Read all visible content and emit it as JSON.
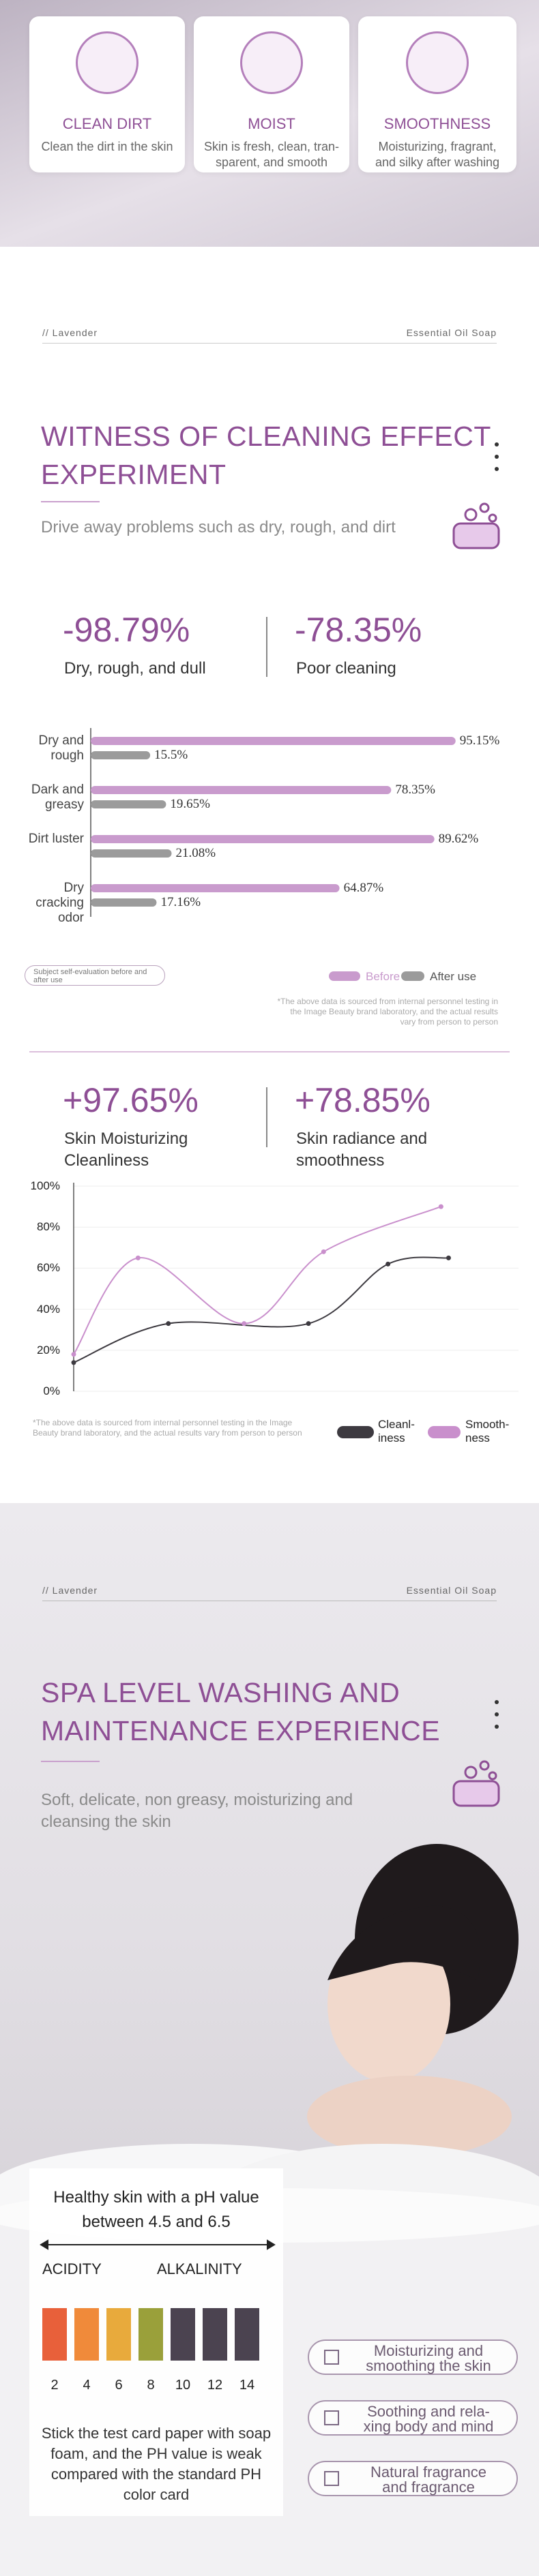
{
  "features": [
    {
      "title": "CLEAN DIRT",
      "text": "Clean the dirt in the skin"
    },
    {
      "title": "MOIST",
      "text": "Skin is fresh, clean, tran-sparent, and smooth"
    },
    {
      "title": "SMOOTHNESS",
      "text": "Moisturizing, fragrant, and silky after washing"
    }
  ],
  "section1": {
    "tag": "// Lavender",
    "product": "Essential Oil Soap",
    "title": "WITNESS OF CLEANING EFFECT EXPERIMENT",
    "subtitle": "Drive away problems such as dry, rough, and dirt",
    "stats": [
      {
        "value": "-98.79%",
        "label": "Dry, rough, and dull"
      },
      {
        "value": "-78.35%",
        "label": "Poor cleaning"
      }
    ]
  },
  "section2": {
    "stats": [
      {
        "value": "+97.65%",
        "label": "Skin Moisturizing Cleanliness"
      },
      {
        "value": "+78.85%",
        "label": "Skin radiance and smoothness"
      }
    ]
  },
  "chart_data": [
    {
      "type": "bar",
      "categories": [
        "Dry and rough",
        "Dark and greasy",
        "Dirt luster",
        "Dry cracking odor"
      ],
      "series": [
        {
          "name": "Before use",
          "color": "#c99bcd",
          "values": [
            95.15,
            78.35,
            89.62,
            64.87
          ],
          "value_labels": [
            "95.15%",
            "78.35%",
            "89.62%",
            "64.87%"
          ]
        },
        {
          "name": "After use",
          "color": "#9b9b9b",
          "values": [
            15.5,
            19.65,
            21.08,
            17.16
          ],
          "value_labels": [
            "15.5%",
            "19.65%",
            "21.08%",
            "17.16%"
          ]
        }
      ],
      "xlim": [
        0,
        100
      ],
      "caption": "Subject self-evaluation before and after use",
      "note": "*The above data is sourced from internal personnel testing in the Image Beauty brand laboratory, and the actual results vary from person to person"
    },
    {
      "type": "line",
      "series": [
        {
          "name": "Cleanl-iness",
          "color": "#3d3a40",
          "x": [
            0,
            25,
            62,
            83,
            99
          ],
          "values": [
            14,
            33,
            33,
            62,
            65
          ]
        },
        {
          "name": "Smooth-ness",
          "color": "#c98fcc",
          "x": [
            0,
            17,
            45,
            66,
            97
          ],
          "values": [
            18,
            65,
            33,
            68,
            90
          ]
        }
      ],
      "xlim": [
        0,
        100
      ],
      "ylim": [
        0,
        100
      ],
      "yticks": [
        {
          "value": 0,
          "label": "0%"
        },
        {
          "value": 20,
          "label": "20%"
        },
        {
          "value": 40,
          "label": "40%"
        },
        {
          "value": 60,
          "label": "60%"
        },
        {
          "value": 80,
          "label": "80%"
        },
        {
          "value": 100,
          "label": "100%"
        }
      ],
      "grid": true,
      "note": "*The above data is sourced from internal personnel testing in the Image Beauty brand laboratory, and the actual results vary from person to person"
    }
  ],
  "section3": {
    "tag": "// Lavender",
    "product": "Essential Oil Soap",
    "title": "SPA LEVEL WASHING AND MAINTENANCE EXPERIENCE",
    "subtitle": "Soft, delicate, non greasy, moisturizing and cleansing the skin",
    "ph": {
      "heading": "Healthy skin with a pH value between 4.5 and 6.5",
      "acid": "ACIDITY",
      "alkaline": "ALKALINITY",
      "scale": [
        2,
        4,
        6,
        8,
        10,
        12,
        14
      ],
      "colors": [
        "#e8603a",
        "#f08a3a",
        "#e8aa3c",
        "#9aa03a",
        "#4b4350",
        "#4b4350",
        "#4b4350"
      ],
      "caption": "Stick the test card paper with soap foam, and the PH value is weak compared with the standard PH color card"
    },
    "benefits": [
      "Moisturizing and smoothing the skin",
      "Soothing and rela-xing body and mind",
      "Natural fragrance and fragrance"
    ]
  }
}
